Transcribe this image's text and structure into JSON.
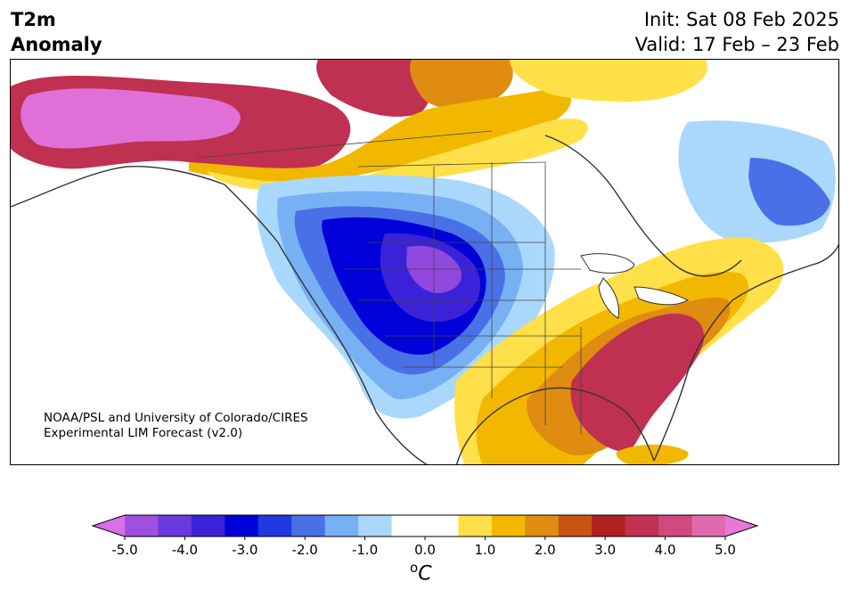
{
  "title": {
    "line1": "T2m",
    "line2": "Anomaly"
  },
  "dates": {
    "init": "Init: Sat 08 Feb 2025",
    "valid": "Valid: 17 Feb – 23 Feb"
  },
  "credit": {
    "line1": "NOAA/PSL and University of Colorado/CIRES",
    "line2": "Experimental LIM Forecast (v2.0)"
  },
  "colorbar": {
    "unit_symbol": "o",
    "unit_letter": "C",
    "ticks": [
      "-5.0",
      "-4.0",
      "-3.0",
      "-2.0",
      "-1.0",
      "0.0",
      "1.0",
      "2.0",
      "3.0",
      "4.0",
      "5.0"
    ],
    "colors": [
      "#a050e0",
      "#6a3ae0",
      "#3b22d8",
      "#0000d8",
      "#2238e0",
      "#4a70e8",
      "#78b0f4",
      "#aad8fc",
      "#ffffff",
      "#ffffff",
      "#ffe048",
      "#f2b800",
      "#e08c10",
      "#c85414",
      "#b02020",
      "#c03050",
      "#d04a80",
      "#e06ab0"
    ],
    "under_color": "#d870e8",
    "over_color": "#e878d8"
  },
  "map": {
    "region": "North America",
    "palette": {
      "ocean": "#ffffff",
      "coast": "#333333",
      "strong_warm": "#e070d8",
      "warm": "#c03050",
      "orange": "#e08c10",
      "yellow": "#ffe048",
      "light_blue": "#aad8fc",
      "blue": "#4a70e8",
      "deep_blue": "#0000d8",
      "purple": "#9048e0"
    }
  }
}
